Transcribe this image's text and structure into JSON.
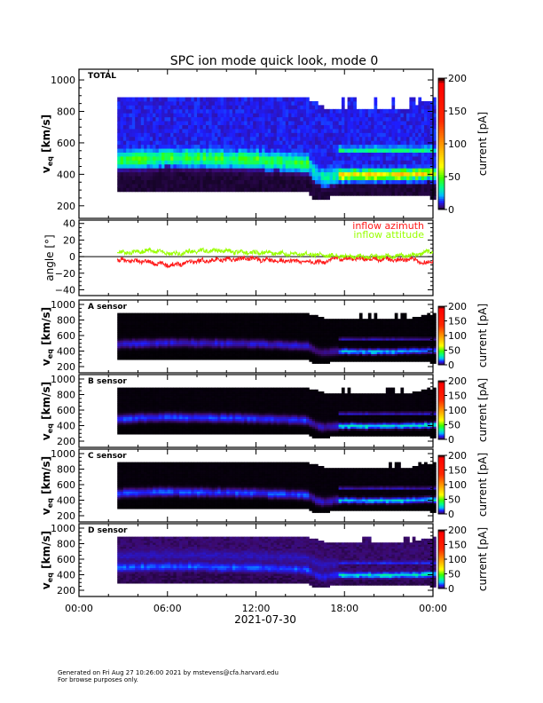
{
  "chart_data": {
    "type": "heatmap",
    "title": "SPC ion mode quick look, mode 0",
    "xlabel": "2021-07-30",
    "x_ticks": [
      "00:00",
      "06:00",
      "12:00",
      "18:00",
      "00:00"
    ],
    "x_tick_hours": [
      0,
      6,
      12,
      18,
      24
    ],
    "x_range_hours": [
      0,
      24
    ],
    "data_start_hour": 2.6,
    "spectrogram_panels": [
      {
        "name": "TOTAL",
        "label": "TOTAL",
        "ylabel": "v",
        "ylabel_sub": "eq",
        "ylabel_unit": " [km/s]",
        "ylim": [
          120,
          1068
        ],
        "yticks": [
          200,
          400,
          600,
          800,
          1000
        ],
        "colorbar": {
          "label": "current [pA]",
          "range": [
            0,
            200
          ],
          "ticks": [
            0,
            50,
            100,
            150,
            200
          ]
        },
        "peak_current_before": 30,
        "peak_current_after": 60,
        "alpha_current_after": 28,
        "background_high": 11,
        "background_low": 2
      },
      {
        "name": "A",
        "label": "A sensor",
        "ylabel": "v",
        "ylabel_sub": "eq",
        "ylabel_unit": " [km/s]",
        "ylim": [
          120,
          1057
        ],
        "yticks": [
          200,
          400,
          600,
          800,
          1000
        ],
        "colorbar": {
          "label": "current [pA]",
          "range": [
            0,
            200
          ],
          "ticks": [
            0,
            50,
            100,
            150,
            200
          ]
        },
        "peak_current_before": 9,
        "peak_current_after": 22,
        "alpha_current_after": 9,
        "background_high": 0.3,
        "background_low": 0.2
      },
      {
        "name": "B",
        "label": "B sensor",
        "ylabel": "v",
        "ylabel_sub": "eq",
        "ylabel_unit": " [km/s]",
        "ylim": [
          120,
          1057
        ],
        "yticks": [
          200,
          400,
          600,
          800,
          1000
        ],
        "colorbar": {
          "label": "current [pA]",
          "range": [
            0,
            200
          ],
          "ticks": [
            0,
            50,
            100,
            150,
            200
          ]
        },
        "peak_current_before": 12,
        "peak_current_after": 26,
        "alpha_current_after": 10,
        "background_high": 0.4,
        "background_low": 0.2
      },
      {
        "name": "C",
        "label": "C sensor",
        "ylabel": "v",
        "ylabel_sub": "eq",
        "ylabel_unit": " [km/s]",
        "ylim": [
          120,
          1057
        ],
        "yticks": [
          200,
          400,
          600,
          800,
          1000
        ],
        "colorbar": {
          "label": "current [pA]",
          "range": [
            0,
            200
          ],
          "ticks": [
            0,
            50,
            100,
            150,
            200
          ]
        },
        "peak_current_before": 13,
        "peak_current_after": 24,
        "alpha_current_after": 9,
        "background_high": 0.4,
        "background_low": 0.2
      },
      {
        "name": "D",
        "label": "D sensor",
        "ylabel": "v",
        "ylabel_sub": "eq",
        "ylabel_unit": " [km/s]",
        "ylim": [
          120,
          1057
        ],
        "yticks": [
          200,
          400,
          600,
          800,
          1000
        ],
        "colorbar": {
          "label": "current [pA]",
          "range": [
            0,
            200
          ],
          "ticks": [
            0,
            50,
            100,
            150,
            200
          ]
        },
        "peak_current_before": 11,
        "peak_current_after": 24,
        "alpha_current_after": 10,
        "background_high": 4,
        "background_low": 3
      }
    ],
    "solar_wind": {
      "hours": [
        2.6,
        4,
        6,
        8,
        10,
        12,
        14,
        15.5,
        16,
        16.5,
        17.5,
        18,
        20,
        22,
        24
      ],
      "peak_velocity": [
        490,
        500,
        510,
        505,
        500,
        495,
        480,
        470,
        410,
        380,
        400,
        400,
        395,
        400,
        410
      ],
      "lower_cutoff": [
        285,
        285,
        285,
        285,
        285,
        285,
        285,
        285,
        240,
        240,
        270,
        270,
        270,
        270,
        250
      ],
      "upper_cutoff": [
        880,
        880,
        880,
        880,
        880,
        880,
        880,
        880,
        860,
        830,
        810,
        810,
        810,
        810,
        880
      ],
      "alpha_velocity_after": 560,
      "transition_hour": 17.5
    },
    "angle_panel": {
      "ylabel": "angle [°]",
      "ylim": [
        -47,
        44
      ],
      "yticks": [
        -40,
        -20,
        0,
        20,
        40
      ],
      "legend": [
        {
          "name": "inflow azimuth",
          "color": "#ff1a1a"
        },
        {
          "name": "inflow attitude",
          "color": "#99ff00"
        }
      ],
      "hours": [
        2.6,
        3.5,
        4.5,
        5.5,
        6.5,
        7.5,
        8.5,
        9.5,
        10.5,
        11.5,
        12.5,
        13.5,
        14.5,
        15.5,
        16.5,
        17.5,
        18.5,
        19.5,
        20.5,
        21.5,
        22.5,
        23.5,
        24
      ],
      "azimuth": [
        -5,
        -5,
        -6,
        -9,
        -10,
        -6,
        -5,
        -4,
        -3,
        -2,
        -4,
        -5,
        -5,
        -6,
        -7,
        -2,
        -2,
        -3,
        -3,
        -4,
        -3,
        -8,
        -5
      ],
      "attitude": [
        5,
        5,
        7,
        6,
        3,
        6,
        7,
        7,
        6,
        5,
        5,
        4,
        3,
        3,
        2,
        1,
        0,
        0,
        0,
        1,
        1,
        5,
        6
      ]
    }
  },
  "footer": {
    "line1": "Generated on Fri Aug 27 10:26:00 2021 by mstevens@cfa.harvard.edu",
    "line2": "For browse purposes only."
  }
}
